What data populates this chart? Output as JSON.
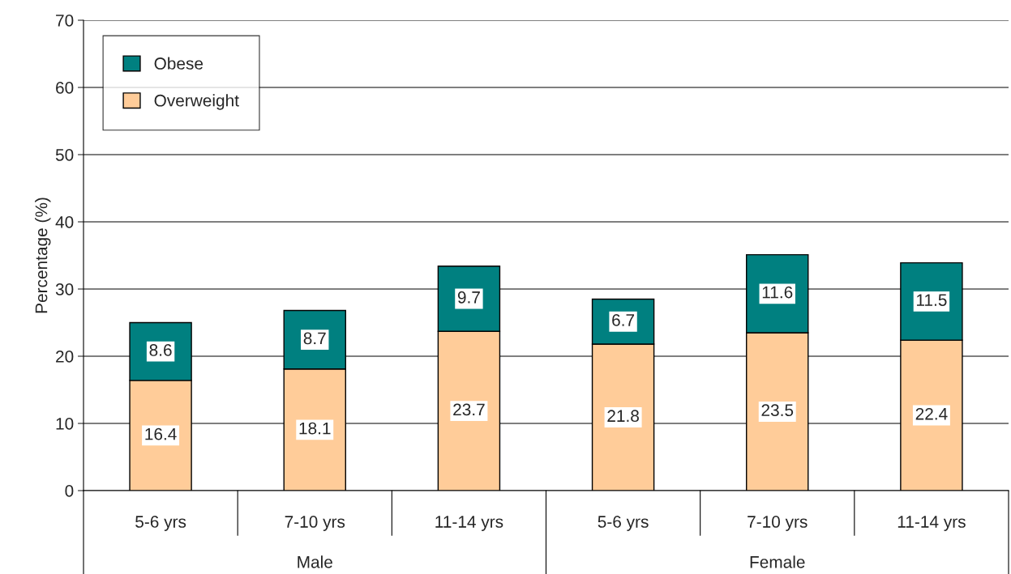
{
  "chart_data": {
    "type": "bar",
    "stacked": true,
    "ylabel": "Percentage (%)",
    "categories": [
      "5-6 yrs",
      "7-10 yrs",
      "11-14 yrs",
      "5-6 yrs",
      "7-10 yrs",
      "11-14 yrs"
    ],
    "series": [
      {
        "name": "Overweight",
        "color": "#ffcc99",
        "values": [
          16.4,
          18.1,
          23.7,
          21.8,
          23.5,
          22.4
        ]
      },
      {
        "name": "Obese",
        "color": "#008080",
        "values": [
          8.6,
          8.7,
          9.7,
          6.7,
          11.6,
          11.5
        ]
      }
    ],
    "ylim": [
      0,
      70
    ],
    "yticks": [
      0,
      10,
      20,
      30,
      40,
      50,
      60,
      70
    ],
    "grid": "y",
    "legend": "top left",
    "data_labels": true,
    "annotations": [
      "Male",
      "Female"
    ]
  }
}
